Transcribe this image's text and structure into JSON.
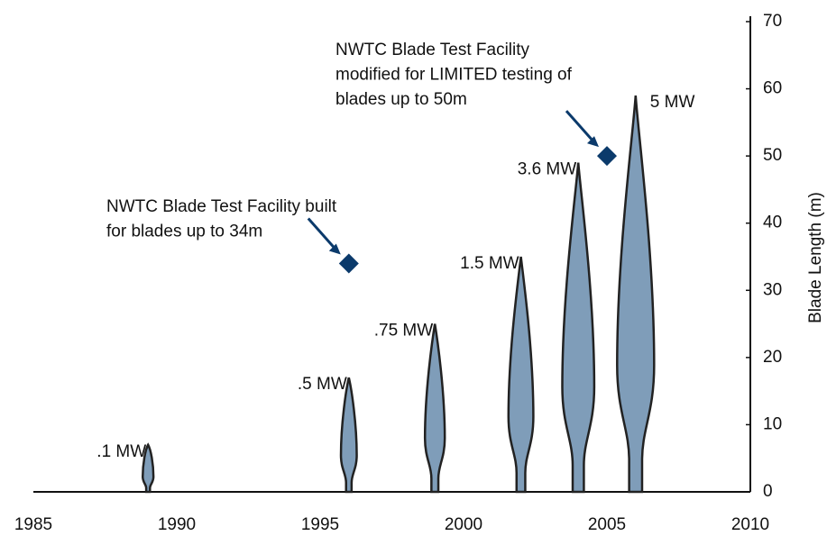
{
  "chart_data": {
    "type": "blade",
    "y_label": "Blade Length (m)",
    "xlim": [
      1985,
      2010
    ],
    "xticks": [
      1985,
      1990,
      1995,
      2000,
      2005,
      2010
    ],
    "ylim": [
      0,
      70
    ],
    "yticks": [
      0,
      10,
      20,
      30,
      40,
      50,
      60,
      70
    ],
    "color": "#7f9db9",
    "categories": [
      ".1 MW",
      ".5 MW",
      ".75 MW",
      "1.5 MW",
      "3.6 MW",
      "5 MW"
    ],
    "x": [
      1989,
      1996,
      1999,
      2002,
      2004,
      2006
    ],
    "values": [
      7,
      17,
      25,
      35,
      49,
      59
    ],
    "markers": {
      "color": "#0b3a6b",
      "x": [
        1996,
        2005
      ],
      "values": [
        34,
        50
      ],
      "annotations": [
        [
          "NWTC Blade Test Facility built",
          "for blades up to 34m"
        ],
        [
          "NWTC Blade Test Facility",
          "modified for LIMITED testing of",
          "blades up to 50m"
        ]
      ]
    }
  }
}
